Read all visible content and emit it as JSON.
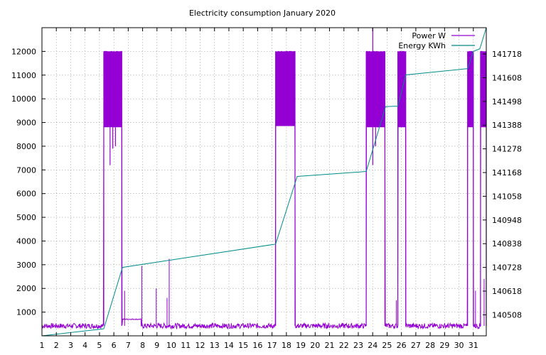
{
  "chart_data": {
    "type": "line",
    "title": "Electricity consumption January 2020",
    "x_ticks": [
      "1",
      "2",
      "3",
      "4",
      "5",
      "6",
      "7",
      "8",
      "9",
      "10",
      "11",
      "12",
      "13",
      "14",
      "15",
      "16",
      "17",
      "18",
      "19",
      "20",
      "21",
      "22",
      "23",
      "24",
      "25",
      "26",
      "27",
      "28",
      "29",
      "30",
      "31"
    ],
    "xlim": [
      1,
      31.9
    ],
    "y_left": {
      "label": "",
      "ticks": [
        1000,
        2000,
        3000,
        4000,
        5000,
        6000,
        7000,
        8000,
        9000,
        10000,
        11000,
        12000
      ],
      "range": [
        0,
        13000
      ]
    },
    "y_right": {
      "label": "",
      "ticks": [
        140508,
        140618,
        140728,
        140838,
        140948,
        141058,
        141168,
        141278,
        141388,
        141498,
        141608,
        141718
      ],
      "range": [
        140410.5,
        141840
      ]
    },
    "grid": true,
    "legend_position": "top-right",
    "series": [
      {
        "name": "Power W",
        "axis": "left",
        "color": "#9400d3",
        "baseline_w": 420,
        "high_bursts": [
          {
            "start": 5.3,
            "end": 6.55,
            "low": 8800,
            "high": 12000,
            "dips": [
              7200,
              7900,
              8000
            ]
          },
          {
            "start": 17.25,
            "end": 18.6,
            "low": 8850,
            "high": 12000,
            "dips": []
          },
          {
            "start": 23.55,
            "end": 24.85,
            "low": 8800,
            "high": 12000,
            "dips": [
              7200,
              8000
            ],
            "peak": 13000
          },
          {
            "start": 25.75,
            "end": 26.3,
            "low": 8800,
            "high": 12000,
            "dips": []
          },
          {
            "start": 30.6,
            "end": 31.0,
            "low": 8800,
            "high": 12000,
            "dips": []
          },
          {
            "start": 31.5,
            "end": 31.9,
            "low": 8800,
            "high": 12000,
            "dips": []
          }
        ],
        "spikes": [
          {
            "x": 6.75,
            "y": 1900
          },
          {
            "x": 7.95,
            "y": 2950
          },
          {
            "x": 8.95,
            "y": 2000
          },
          {
            "x": 9.85,
            "y": 3250
          },
          {
            "x": 9.7,
            "y": 1600
          },
          {
            "x": 25.65,
            "y": 1500
          },
          {
            "x": 31.15,
            "y": 1900
          },
          {
            "x": 31.75,
            "y": 2400
          }
        ],
        "plateau": {
          "start": 6.6,
          "end": 7.9,
          "y": 700
        }
      },
      {
        "name": "Energy KWh",
        "axis": "right",
        "color": "#008b8b",
        "points": [
          [
            1.0,
            140410.5
          ],
          [
            5.3,
            140443
          ],
          [
            6.6,
            140728
          ],
          [
            17.25,
            140836
          ],
          [
            18.75,
            141150
          ],
          [
            23.55,
            141173
          ],
          [
            24.9,
            141474
          ],
          [
            25.75,
            141476
          ],
          [
            26.3,
            141621
          ],
          [
            30.6,
            141650
          ],
          [
            31.0,
            141730
          ],
          [
            31.45,
            141742
          ],
          [
            31.9,
            141840
          ]
        ]
      }
    ]
  }
}
